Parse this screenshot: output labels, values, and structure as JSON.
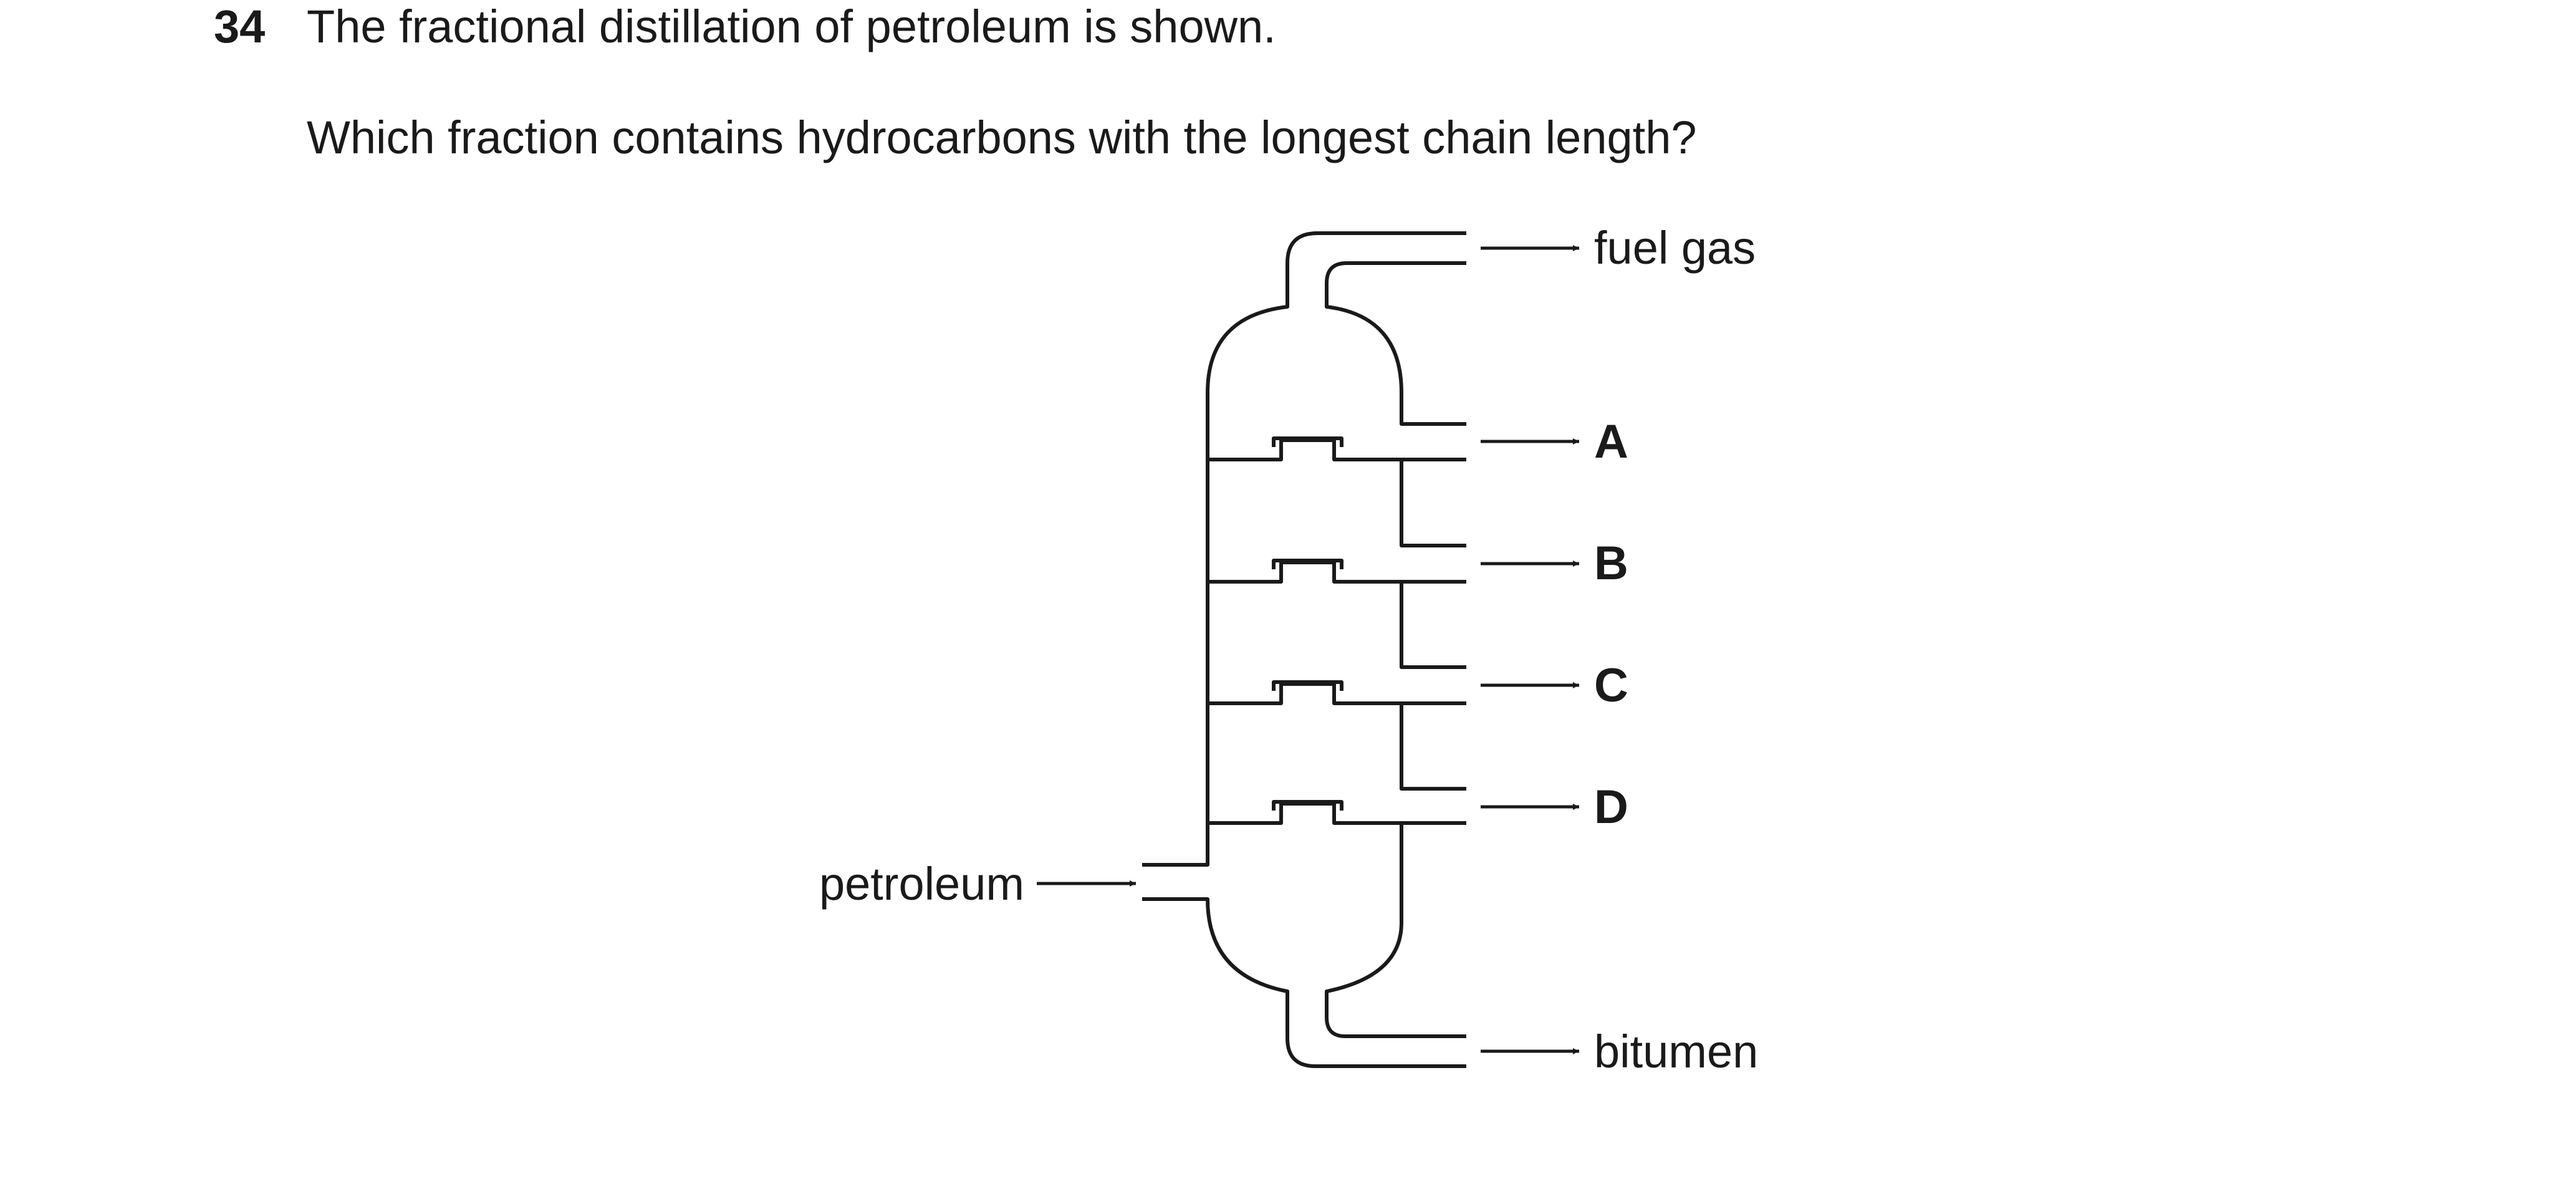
{
  "question": {
    "number": "34",
    "intro": "The fractional distillation of petroleum is shown.",
    "prompt": "Which fraction contains hydrocarbons with the longest chain length?"
  },
  "diagram": {
    "input_label": "petroleum",
    "outputs": {
      "top": "fuel gas",
      "a": "A",
      "b": "B",
      "c": "C",
      "d": "D",
      "bottom": "bitumen"
    }
  }
}
